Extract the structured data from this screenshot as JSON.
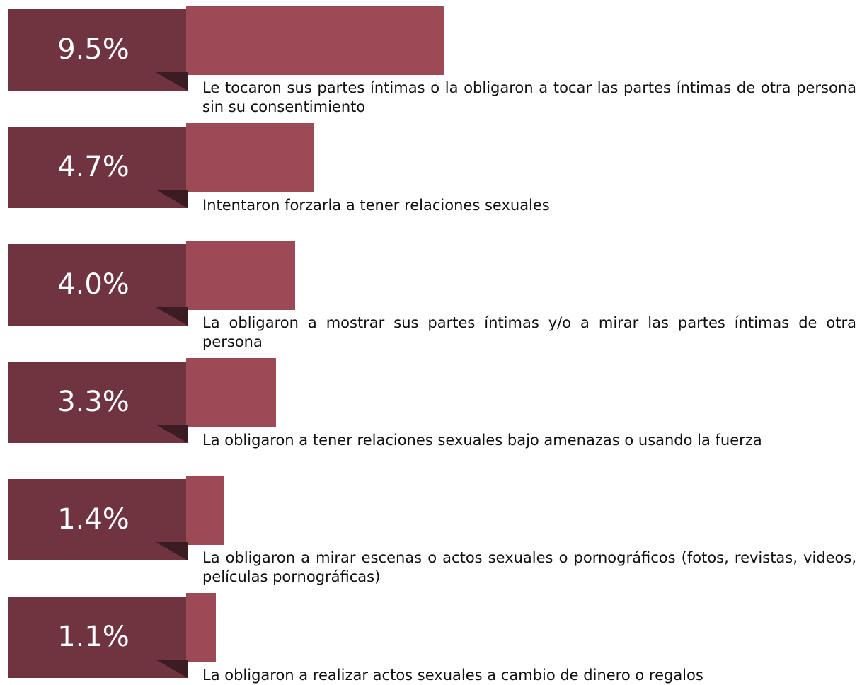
{
  "chart_data": {
    "type": "bar",
    "categories": [
      "Le tocaron sus partes íntimas o la obligaron a tocar las partes íntimas de otra persona sin su consentimiento",
      "Intentaron forzarla a tener relaciones sexuales",
      "La obligaron a mostrar sus partes íntimas y/o a mirar las partes íntimas de otra persona",
      "La obligaron a tener relaciones sexuales bajo amenazas o usando la fuerza",
      "La obligaron a mirar escenas o actos sexuales o pornográficos (fotos, revistas, videos, películas pornográficas)",
      "La obligaron a realizar actos sexuales a cambio de dinero o regalos"
    ],
    "values": [
      9.5,
      4.7,
      4.0,
      3.3,
      1.4,
      1.1
    ],
    "value_labels": [
      "9.5%",
      "4.7%",
      "4.0%",
      "3.3%",
      "1.4%",
      "1.1%"
    ],
    "color": "#9b4a56"
  }
}
